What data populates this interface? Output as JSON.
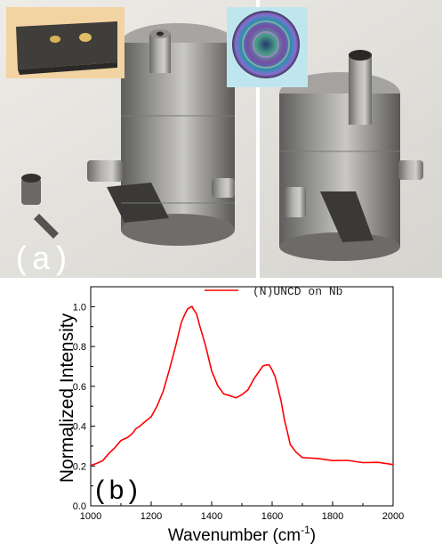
{
  "panels": {
    "a_label": "(a)",
    "b_label": "(b)"
  },
  "chart_data": {
    "type": "line",
    "title": "",
    "xlabel": "Wavenumber (cm",
    "xlabel_sup": "-1",
    "xlabel_close": ")",
    "ylabel": "Normalized Intensity",
    "xlim": [
      1000,
      2000
    ],
    "ylim": [
      0.0,
      1.1
    ],
    "x_ticks": [
      1000,
      1200,
      1400,
      1600,
      1800,
      2000
    ],
    "y_ticks": [
      0.0,
      0.2,
      0.4,
      0.6,
      0.8,
      1.0
    ],
    "y_tick_labels": [
      "0.0",
      "0.2",
      "0.4",
      "0.6",
      "0.8",
      "1.0"
    ],
    "grid": false,
    "legend_position": "top-right",
    "series": [
      {
        "name": "(N)UNCD on Nb",
        "color": "#ff0000",
        "x": [
          1000,
          1020,
          1040,
          1060,
          1080,
          1100,
          1120,
          1130,
          1140,
          1150,
          1160,
          1180,
          1200,
          1220,
          1240,
          1260,
          1280,
          1300,
          1310,
          1320,
          1330,
          1335,
          1340,
          1350,
          1360,
          1380,
          1400,
          1420,
          1440,
          1460,
          1480,
          1500,
          1520,
          1540,
          1560,
          1570,
          1580,
          1590,
          1600,
          1610,
          1620,
          1630,
          1640,
          1650,
          1660,
          1680,
          1700,
          1750,
          1800,
          1850,
          1900,
          1950,
          2000
        ],
        "y": [
          0.205,
          0.21,
          0.23,
          0.26,
          0.295,
          0.325,
          0.345,
          0.35,
          0.37,
          0.385,
          0.4,
          0.42,
          0.45,
          0.5,
          0.58,
          0.68,
          0.8,
          0.92,
          0.96,
          0.985,
          1.0,
          0.998,
          0.99,
          0.96,
          0.91,
          0.8,
          0.68,
          0.6,
          0.565,
          0.55,
          0.545,
          0.555,
          0.585,
          0.635,
          0.685,
          0.7,
          0.71,
          0.705,
          0.685,
          0.645,
          0.59,
          0.52,
          0.44,
          0.37,
          0.31,
          0.265,
          0.245,
          0.235,
          0.23,
          0.225,
          0.22,
          0.215,
          0.21
        ]
      }
    ]
  }
}
